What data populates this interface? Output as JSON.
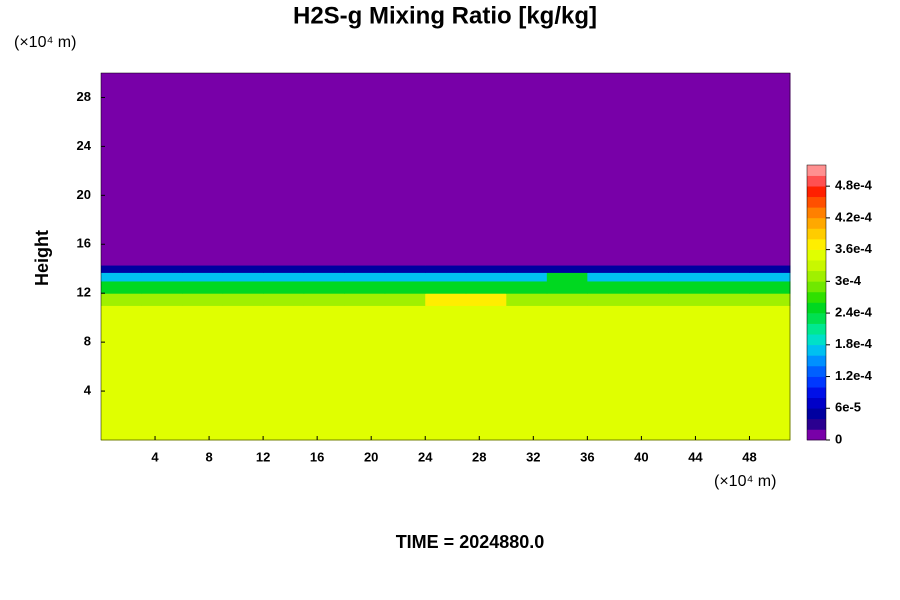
{
  "chart_data": {
    "type": "heatmap",
    "title": "H2S-g Mixing Ratio [kg/kg]",
    "y_label": "Height",
    "x_unit": "(×10⁴ m)",
    "y_unit": "(×10⁴ m)",
    "footer": "TIME = 2024880.0",
    "xlim": [
      0,
      51
    ],
    "ylim": [
      0,
      30
    ],
    "xticks": [
      4,
      8,
      12,
      16,
      20,
      24,
      28,
      32,
      36,
      40,
      44,
      48
    ],
    "yticks": [
      4,
      8,
      12,
      16,
      20,
      24,
      28
    ],
    "x": [
      0,
      3,
      6,
      9,
      12,
      15,
      18,
      21,
      24,
      27,
      30,
      33,
      36,
      39,
      42,
      45,
      48,
      51
    ],
    "y": [
      0,
      11,
      12,
      13,
      13.7,
      14.3,
      30
    ],
    "z": [
      [
        0.00035,
        0.00035,
        0.00035,
        0.00035,
        0.00035,
        0.00035,
        0.00035,
        0.00035,
        0.00035,
        0.00035,
        0.00035,
        0.00035,
        0.00035,
        0.00035,
        0.00035,
        0.00035,
        0.00035
      ],
      [
        0.00031,
        0.00031,
        0.00031,
        0.00031,
        0.00031,
        0.00031,
        0.00031,
        0.00031,
        0.00037,
        0.00037,
        0.00031,
        0.00031,
        0.00031,
        0.00031,
        0.00031,
        0.00031,
        0.00031
      ],
      [
        0.00025,
        0.00025,
        0.00025,
        0.00025,
        0.00025,
        0.00025,
        0.00025,
        0.00025,
        0.00025,
        0.00025,
        0.00025,
        0.00025,
        0.00025,
        0.00025,
        0.00025,
        0.00025,
        0.00025
      ],
      [
        0.00017,
        0.00017,
        0.00017,
        0.00017,
        0.00017,
        0.00017,
        0.00017,
        0.00017,
        0.00017,
        0.00017,
        0.00017,
        0.00025,
        0.00017,
        0.00017,
        0.00017,
        0.00017,
        0.00017
      ],
      [
        5e-05,
        5e-05,
        5e-05,
        5e-05,
        5e-05,
        5e-05,
        5e-05,
        5e-05,
        5e-05,
        5e-05,
        5e-05,
        5e-05,
        5e-05,
        5e-05,
        5e-05,
        5e-05,
        5e-05
      ],
      [
        0,
        0,
        0,
        0,
        0,
        0,
        0,
        0,
        0,
        0,
        0,
        0,
        0,
        0,
        0,
        0,
        0
      ]
    ],
    "colorbar": {
      "lim": [
        0,
        0.00052
      ],
      "ticks": [
        0,
        {
          "value": 6e-05,
          "label": "6e-5"
        },
        {
          "value": 0.00012,
          "label": "1.2e-4"
        },
        {
          "value": 0.00018,
          "label": "1.8e-4"
        },
        {
          "value": 0.00024,
          "label": "2.4e-4"
        },
        {
          "value": 0.0003,
          "label": "3e-4"
        },
        {
          "value": 0.00036,
          "label": "3.6e-4"
        },
        {
          "value": 0.00042,
          "label": "4.2e-4"
        },
        {
          "value": 0.00048,
          "label": "4.8e-4"
        }
      ],
      "colors": [
        "#7800a8",
        "#2a0090",
        "#0000a0",
        "#0000c8",
        "#0010e8",
        "#0038ff",
        "#0060ff",
        "#0090ff",
        "#00c0f0",
        "#00e0c8",
        "#00e890",
        "#00e050",
        "#00d820",
        "#30e000",
        "#70e800",
        "#a0f000",
        "#c8f800",
        "#e0ff00",
        "#ffee00",
        "#ffcc00",
        "#ffa800",
        "#ff8000",
        "#ff5000",
        "#ff2000",
        "#ff5050",
        "#ff9090"
      ]
    }
  }
}
